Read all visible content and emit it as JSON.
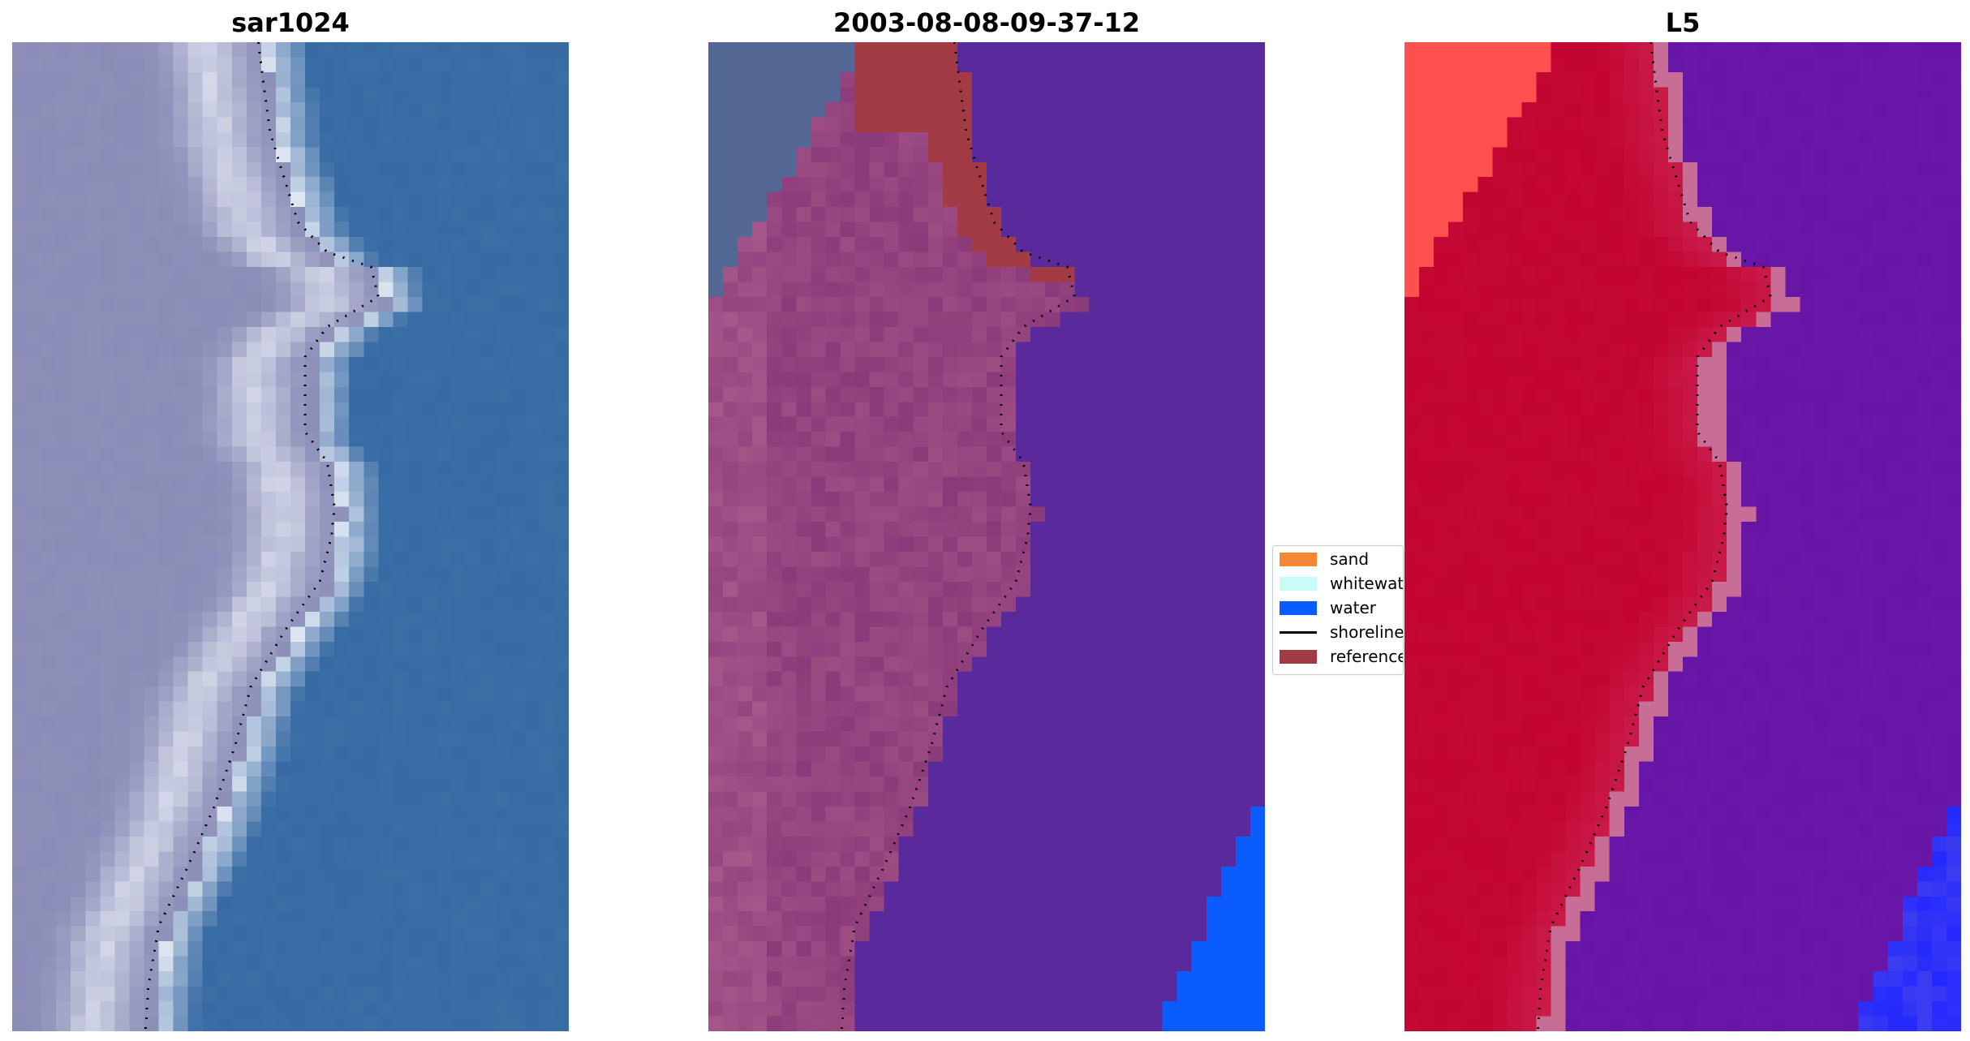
{
  "panels": [
    {
      "title": "sar1024",
      "style": "rgb"
    },
    {
      "title": "2003-08-08-09-37-12",
      "style": "classes"
    },
    {
      "title": "L5",
      "style": "probability"
    }
  ],
  "legend": {
    "items": [
      {
        "label": "sand",
        "color": "#f58735",
        "kind": "patch"
      },
      {
        "label": "whitewat",
        "color": "#c9fbf8",
        "kind": "patch"
      },
      {
        "label": "water",
        "color": "#0a5cff",
        "kind": "patch"
      },
      {
        "label": "shoreline",
        "color": "#000000",
        "kind": "line"
      },
      {
        "label": "reference",
        "color": "#a33b45",
        "kind": "patch"
      }
    ]
  },
  "colors": {
    "water_class": "#5a2a9c",
    "land_class": "#8b3a79",
    "probability_high": "#c3052f",
    "probability_low": "#6a16a8",
    "rgb_water": "#3a6ea5",
    "rgb_land": "#8d8fb8"
  }
}
